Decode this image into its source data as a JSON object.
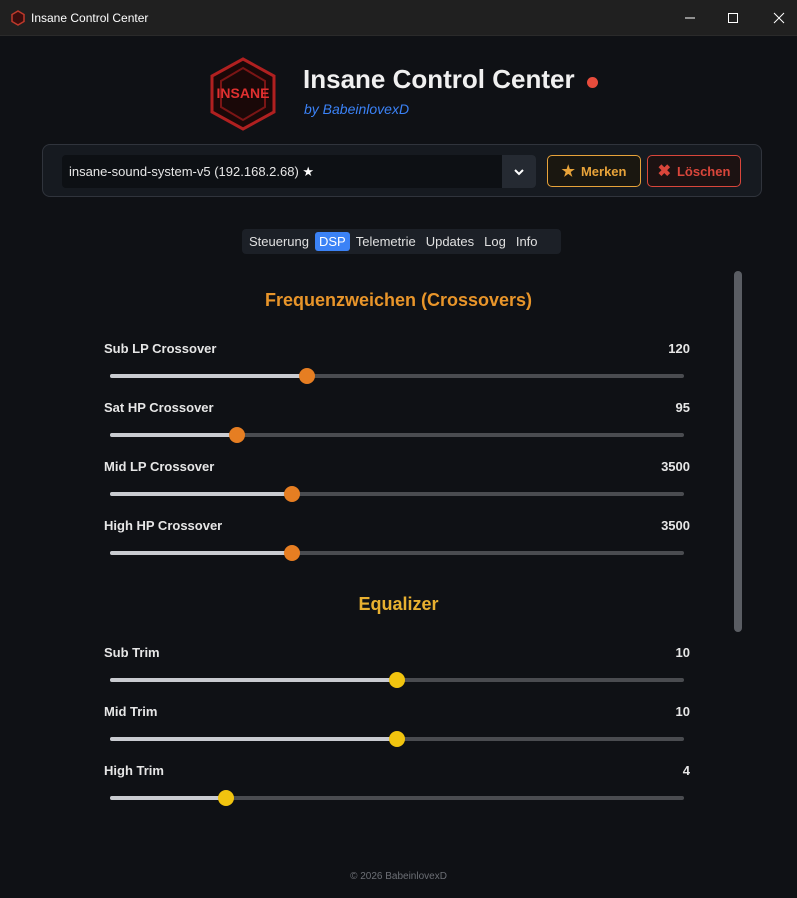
{
  "window": {
    "title": "Insane Control Center"
  },
  "header": {
    "logo_text": "INSANE",
    "title": "Insane Control Center",
    "subtitle": "by BabeinlovexD"
  },
  "device": {
    "selected": "insane-sound-system-v5 (192.168.2.68)",
    "buttons": [
      "Merken",
      "Löschen"
    ]
  },
  "tabs": [
    "Steuerung",
    "DSP",
    "Telemetrie",
    "Updates",
    "Log",
    "Info"
  ],
  "sections": [
    {
      "title": "Frequenzweichen (Crossovers)",
      "sliders": [
        {
          "label": "Sub LP Crossover",
          "value": 120
        },
        {
          "label": "Sat HP Crossover",
          "value": 95
        },
        {
          "label": "Mid LP Crossover",
          "value": 3500
        },
        {
          "label": "High HP Crossover",
          "value": 3500
        }
      ]
    },
    {
      "title": "Equalizer",
      "sliders": [
        {
          "label": "Sub Trim",
          "value": 10
        },
        {
          "label": "Mid Trim",
          "value": 10
        },
        {
          "label": "High Trim",
          "value": 4
        }
      ]
    }
  ],
  "footer": "© 2026 BabeinlovexD"
}
